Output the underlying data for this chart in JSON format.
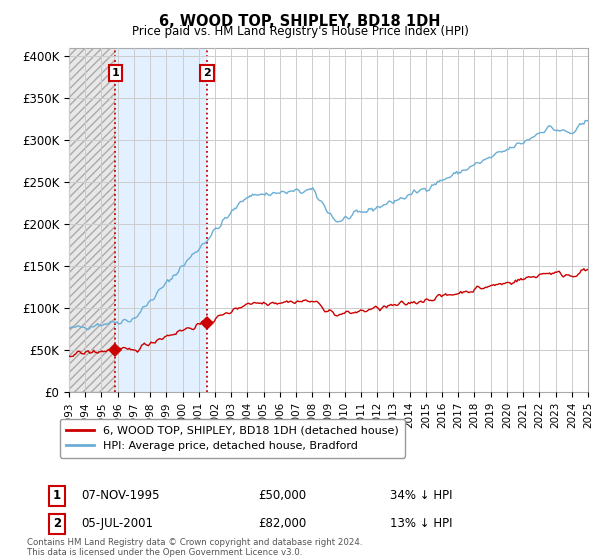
{
  "title": "6, WOOD TOP, SHIPLEY, BD18 1DH",
  "subtitle": "Price paid vs. HM Land Registry's House Price Index (HPI)",
  "ylabel_ticks": [
    "£0",
    "£50K",
    "£100K",
    "£150K",
    "£200K",
    "£250K",
    "£300K",
    "£350K",
    "£400K"
  ],
  "ytick_values": [
    0,
    50000,
    100000,
    150000,
    200000,
    250000,
    300000,
    350000,
    400000
  ],
  "ylim": [
    0,
    410000
  ],
  "xlim_years": [
    1993,
    2025
  ],
  "sale1_year": 1995.85,
  "sale1_price": 50000,
  "sale1_label": "1",
  "sale1_date": "07-NOV-1995",
  "sale1_text": "£50,000",
  "sale1_pct": "34% ↓ HPI",
  "sale2_year": 2001.5,
  "sale2_price": 82000,
  "sale2_label": "2",
  "sale2_date": "05-JUL-2001",
  "sale2_text": "£82,000",
  "sale2_pct": "13% ↓ HPI",
  "red_line_color": "#cc0000",
  "blue_line_color": "#6baed6",
  "hatch_color": "#b0b8c8",
  "grid_color": "#cccccc",
  "legend_line1": "6, WOOD TOP, SHIPLEY, BD18 1DH (detached house)",
  "legend_line2": "HPI: Average price, detached house, Bradford",
  "footer": "Contains HM Land Registry data © Crown copyright and database right 2024.\nThis data is licensed under the Open Government Licence v3.0.",
  "bg_color": "#ffffff",
  "hatch_bg": "#dce6f1",
  "shade_between_color": "#ddeeff"
}
